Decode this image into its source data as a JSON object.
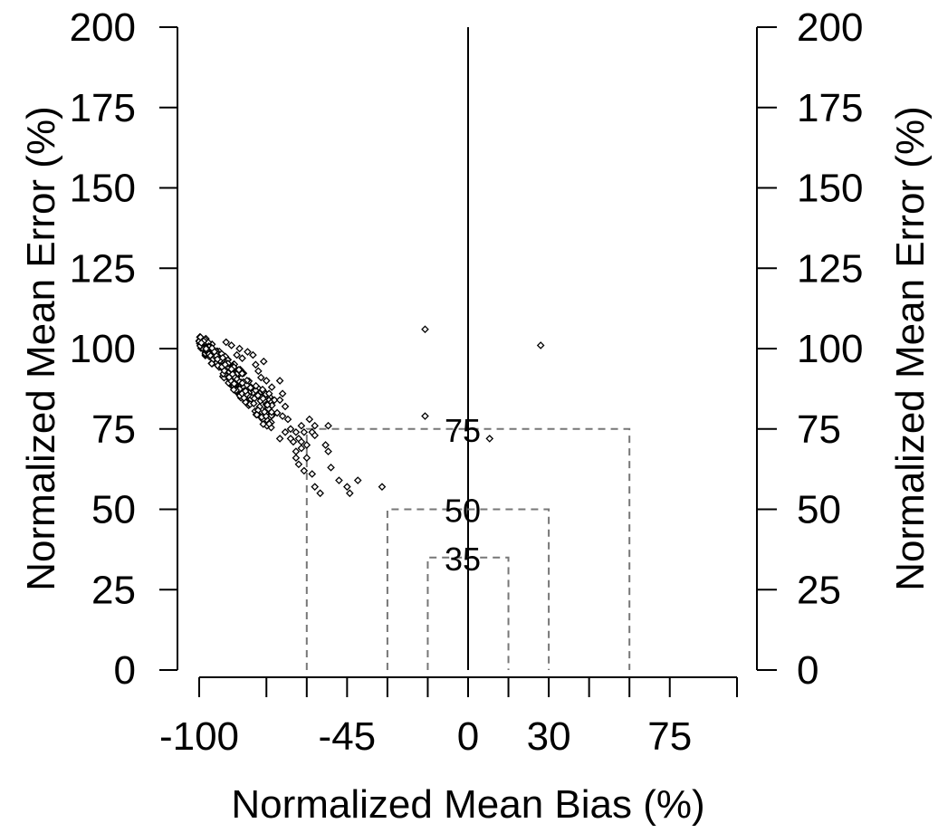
{
  "chart_data": {
    "type": "scatter",
    "title": "",
    "xlabel": "Normalized Mean Bias (%)",
    "ylabel": "Normalized Mean Error (%)",
    "ylabel_right": "Normalized Mean Error (%)",
    "xlim": [
      -100,
      100
    ],
    "ylim": [
      0,
      200
    ],
    "xticks": [
      -100,
      -75,
      -60,
      -45,
      -30,
      -15,
      0,
      15,
      30,
      45,
      60,
      75,
      100
    ],
    "xtick_labels": [
      "-100",
      "",
      "",
      "-45",
      "",
      "",
      "0",
      "",
      "30",
      "",
      "",
      "75",
      ""
    ],
    "yticks": [
      0,
      25,
      50,
      75,
      100,
      125,
      150,
      175,
      200
    ],
    "ytick_labels": [
      "0",
      "25",
      "50",
      "75",
      "100",
      "125",
      "150",
      "175",
      "200"
    ],
    "zones": [
      {
        "label": "75",
        "x": [
          -60,
          60
        ],
        "y": 75
      },
      {
        "label": "50",
        "x": [
          -30,
          30
        ],
        "y": 50
      },
      {
        "label": "35",
        "x": [
          -15,
          15
        ],
        "y": 35
      }
    ],
    "cluster": {
      "description_points": "dense points along NME ≈ -NMB from NMB -100 to -72",
      "x_range": [
        -100,
        -72
      ],
      "count": 220
    },
    "points": [
      [
        -76,
        96
      ],
      [
        -78,
        93
      ],
      [
        -75,
        90
      ],
      [
        -73,
        88
      ],
      [
        -70,
        90
      ],
      [
        -69,
        86
      ],
      [
        -72,
        84
      ],
      [
        -71,
        80
      ],
      [
        -68,
        82
      ],
      [
        -67,
        78
      ],
      [
        -66,
        75
      ],
      [
        -68,
        74
      ],
      [
        -70,
        72
      ],
      [
        -65,
        71
      ],
      [
        -64,
        68
      ],
      [
        -63,
        72
      ],
      [
        -62,
        76
      ],
      [
        -61,
        74
      ],
      [
        -60,
        70
      ],
      [
        -59,
        78
      ],
      [
        -58,
        74
      ],
      [
        -57,
        76
      ],
      [
        -57,
        73
      ],
      [
        -62,
        69
      ],
      [
        -64,
        66
      ],
      [
        -63,
        64
      ],
      [
        -61,
        62
      ],
      [
        -60,
        66
      ],
      [
        -58,
        61
      ],
      [
        -57,
        57
      ],
      [
        -55,
        55
      ],
      [
        -53,
        70
      ],
      [
        -52,
        68
      ],
      [
        -51,
        63
      ],
      [
        -52,
        76
      ],
      [
        -48,
        59
      ],
      [
        -45,
        57
      ],
      [
        -44,
        55
      ],
      [
        -41,
        59
      ],
      [
        -32,
        57
      ],
      [
        -16,
        79
      ],
      [
        -16,
        106
      ],
      [
        8,
        72
      ],
      [
        27,
        101
      ],
      [
        -90,
        102
      ],
      [
        -88,
        101
      ],
      [
        -85,
        100
      ],
      [
        -82,
        99
      ],
      [
        -80,
        98
      ],
      [
        -84,
        97
      ],
      [
        -86,
        98
      ],
      [
        -79,
        95
      ],
      [
        -77,
        91
      ],
      [
        -74,
        86
      ],
      [
        -70,
        84
      ],
      [
        -69,
        79
      ],
      [
        -66,
        72
      ],
      [
        -64,
        74
      ],
      [
        -62,
        71
      ]
    ]
  }
}
